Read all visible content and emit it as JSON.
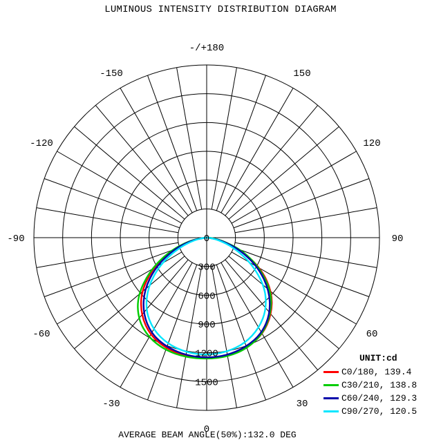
{
  "chart_data": {
    "type": "polar",
    "title": "LUMINOUS INTENSITY DISTRIBUTION DIAGRAM",
    "unit_label": "UNIT:cd",
    "footer": "AVERAGE BEAM ANGLE(50%):132.0 DEG",
    "angle_labels": [
      {
        "angle": 180,
        "text": "-/+180"
      },
      {
        "angle": -150,
        "text": "-150"
      },
      {
        "angle": 150,
        "text": "150"
      },
      {
        "angle": -120,
        "text": "-120"
      },
      {
        "angle": 120,
        "text": "120"
      },
      {
        "angle": -90,
        "text": "-90"
      },
      {
        "angle": 90,
        "text": "90"
      },
      {
        "angle": -60,
        "text": "-60"
      },
      {
        "angle": 60,
        "text": "60"
      },
      {
        "angle": -30,
        "text": "-30"
      },
      {
        "angle": 30,
        "text": "30"
      },
      {
        "angle": 0,
        "text": "0"
      }
    ],
    "radial_ticks": [
      0,
      300,
      600,
      900,
      1200,
      1500
    ],
    "radial_max": 1800,
    "angle_step_deg": 10,
    "series": [
      {
        "name": "C0/180, 139.4",
        "color": "#ff0000",
        "angles": [
          -90,
          -80,
          -70,
          -60,
          -50,
          -40,
          -30,
          -20,
          -10,
          0,
          10,
          20,
          30,
          40,
          50,
          60,
          70,
          80,
          90
        ],
        "values": [
          15,
          175,
          395,
          655,
          895,
          1060,
          1175,
          1230,
          1255,
          1265,
          1255,
          1225,
          1165,
          1050,
          890,
          660,
          390,
          150,
          30
        ]
      },
      {
        "name": "C30/210, 138.8",
        "color": "#00cc00",
        "angles": [
          -90,
          -80,
          -70,
          -60,
          -50,
          -40,
          -30,
          -20,
          -10,
          0,
          10,
          20,
          30,
          40,
          50,
          60,
          70,
          80,
          90
        ],
        "values": [
          25,
          180,
          410,
          680,
          940,
          1110,
          1205,
          1250,
          1265,
          1265,
          1260,
          1230,
          1160,
          1040,
          880,
          640,
          400,
          165,
          35
        ]
      },
      {
        "name": "C60/240, 129.3",
        "color": "#0000aa",
        "angles": [
          -90,
          -80,
          -70,
          -60,
          -50,
          -40,
          -30,
          -20,
          -10,
          0,
          10,
          20,
          30,
          40,
          50,
          60,
          70,
          80,
          90
        ],
        "values": [
          20,
          165,
          370,
          615,
          850,
          1030,
          1155,
          1215,
          1245,
          1255,
          1245,
          1210,
          1150,
          1030,
          850,
          620,
          370,
          150,
          20
        ]
      },
      {
        "name": "C90/270, 120.5",
        "color": "#00e6ff",
        "angles": [
          -90,
          -80,
          -70,
          -60,
          -50,
          -40,
          -30,
          -20,
          -10,
          0,
          10,
          20,
          30,
          40,
          50,
          60,
          70,
          80,
          90
        ],
        "values": [
          15,
          125,
          310,
          560,
          800,
          990,
          1110,
          1180,
          1215,
          1225,
          1210,
          1170,
          1090,
          970,
          790,
          540,
          300,
          120,
          15
        ]
      }
    ]
  }
}
